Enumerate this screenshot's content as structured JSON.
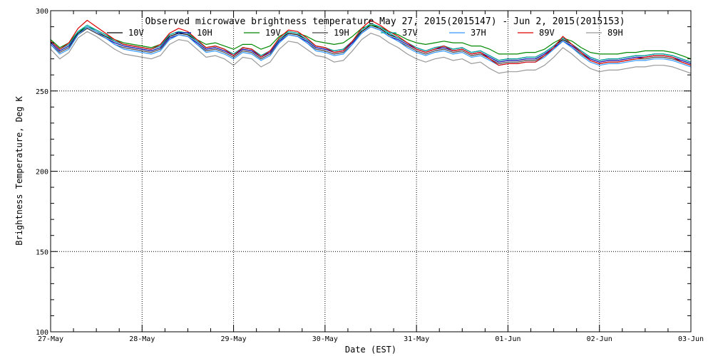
{
  "chart_data": {
    "type": "line",
    "title": "Observed microwave brightness temperature May 27, 2015(2015147) - Jun  2, 2015(2015153)",
    "xlabel": "Date (EST)",
    "ylabel": "Brightness Temperature, Deg K",
    "ylim": [
      100,
      300
    ],
    "xlim": [
      0,
      7
    ],
    "x_unit": "days since 27-May 00:00",
    "xticks": [
      {
        "value": 0,
        "label": "27-May"
      },
      {
        "value": 1,
        "label": "28-May"
      },
      {
        "value": 2,
        "label": "29-May"
      },
      {
        "value": 3,
        "label": "30-May"
      },
      {
        "value": 4,
        "label": "31-May"
      },
      {
        "value": 5,
        "label": "01-Jun"
      },
      {
        "value": 6,
        "label": "02-Jun"
      },
      {
        "value": 7,
        "label": "03-Jun"
      }
    ],
    "yticks": [
      {
        "value": 100,
        "label": "100"
      },
      {
        "value": 150,
        "label": "150"
      },
      {
        "value": 200,
        "label": "200"
      },
      {
        "value": 250,
        "label": "250"
      },
      {
        "value": 300,
        "label": "300"
      }
    ],
    "grid": true,
    "legend_position": "top-inside",
    "x": [
      0.0,
      0.1,
      0.2,
      0.3,
      0.4,
      0.5,
      0.6,
      0.7,
      0.8,
      0.9,
      1.0,
      1.1,
      1.2,
      1.3,
      1.4,
      1.5,
      1.6,
      1.7,
      1.8,
      1.9,
      2.0,
      2.1,
      2.2,
      2.3,
      2.4,
      2.5,
      2.6,
      2.7,
      2.8,
      2.9,
      3.0,
      3.1,
      3.2,
      3.3,
      3.4,
      3.5,
      3.6,
      3.7,
      3.8,
      3.9,
      4.0,
      4.1,
      4.2,
      4.3,
      4.4,
      4.5,
      4.6,
      4.7,
      4.8,
      4.9,
      5.0,
      5.1,
      5.2,
      5.3,
      5.4,
      5.5,
      5.6,
      5.7,
      5.8,
      5.9,
      6.0,
      6.1,
      6.2,
      6.3,
      6.4,
      6.5,
      6.6,
      6.7,
      6.8,
      6.9,
      7.0
    ],
    "series": [
      {
        "name": "10V",
        "color": "#000000",
        "values": [
          281,
          276,
          279,
          286,
          290,
          287,
          284,
          281,
          279,
          278,
          277,
          276,
          278,
          284,
          286,
          285,
          281,
          277,
          278,
          276,
          273,
          277,
          276,
          272,
          275,
          282,
          286,
          285,
          282,
          278,
          277,
          275,
          276,
          281,
          287,
          291,
          289,
          285,
          283,
          280,
          277,
          275,
          277,
          278,
          276,
          277,
          274,
          275,
          272,
          269,
          270,
          270,
          271,
          271,
          274,
          278,
          282,
          279,
          275,
          271,
          269,
          270,
          270,
          271,
          272,
          272,
          273,
          273,
          272,
          270,
          268
        ]
      },
      {
        "name": "10H",
        "color": "#0000aa",
        "values": [
          280,
          275,
          278,
          285,
          289,
          286,
          283,
          280,
          278,
          277,
          276,
          275,
          277,
          283,
          285,
          284,
          280,
          276,
          277,
          275,
          272,
          276,
          275,
          271,
          274,
          281,
          285,
          284,
          281,
          277,
          276,
          274,
          275,
          280,
          286,
          290,
          288,
          284,
          282,
          279,
          276,
          274,
          276,
          277,
          275,
          276,
          273,
          274,
          271,
          268,
          269,
          269,
          270,
          270,
          273,
          277,
          281,
          278,
          274,
          270,
          268,
          269,
          269,
          270,
          271,
          271,
          272,
          272,
          271,
          269,
          267
        ]
      },
      {
        "name": "19V",
        "color": "#008800",
        "values": [
          282,
          277,
          280,
          287,
          290,
          288,
          285,
          282,
          280,
          279,
          278,
          277,
          279,
          285,
          287,
          286,
          282,
          279,
          280,
          278,
          276,
          279,
          279,
          276,
          278,
          284,
          287,
          286,
          284,
          281,
          280,
          279,
          280,
          284,
          289,
          291,
          290,
          287,
          285,
          282,
          280,
          279,
          280,
          281,
          280,
          280,
          278,
          278,
          276,
          273,
          273,
          273,
          274,
          274,
          276,
          280,
          283,
          281,
          277,
          274,
          273,
          273,
          273,
          274,
          274,
          275,
          275,
          275,
          274,
          272,
          270
        ]
      },
      {
        "name": "19H",
        "color": "#444444",
        "values": [
          279,
          274,
          277,
          285,
          289,
          286,
          283,
          279,
          277,
          276,
          275,
          274,
          276,
          282,
          285,
          284,
          279,
          275,
          276,
          274,
          271,
          275,
          274,
          270,
          273,
          280,
          285,
          284,
          280,
          276,
          275,
          273,
          274,
          279,
          286,
          290,
          288,
          284,
          281,
          278,
          275,
          273,
          275,
          276,
          274,
          275,
          272,
          273,
          270,
          267,
          268,
          268,
          269,
          269,
          272,
          276,
          281,
          277,
          273,
          269,
          267,
          268,
          268,
          269,
          270,
          270,
          271,
          271,
          270,
          268,
          266
        ]
      },
      {
        "name": "37V",
        "color": "#00aaaa",
        "values": [
          281,
          276,
          279,
          287,
          291,
          288,
          285,
          281,
          279,
          278,
          277,
          276,
          278,
          285,
          287,
          286,
          281,
          277,
          278,
          276,
          273,
          277,
          276,
          272,
          275,
          282,
          287,
          286,
          282,
          278,
          277,
          275,
          276,
          281,
          288,
          292,
          290,
          286,
          283,
          280,
          277,
          275,
          277,
          278,
          276,
          277,
          274,
          275,
          272,
          269,
          270,
          270,
          271,
          271,
          274,
          278,
          283,
          279,
          275,
          271,
          269,
          270,
          270,
          271,
          272,
          272,
          273,
          273,
          272,
          270,
          268
        ]
      },
      {
        "name": "37H",
        "color": "#3399ff",
        "values": [
          279,
          273,
          276,
          285,
          290,
          287,
          283,
          279,
          276,
          275,
          274,
          273,
          275,
          282,
          285,
          284,
          279,
          274,
          275,
          273,
          270,
          274,
          273,
          269,
          272,
          280,
          285,
          284,
          280,
          275,
          274,
          272,
          273,
          279,
          286,
          290,
          288,
          284,
          281,
          277,
          274,
          272,
          274,
          275,
          273,
          274,
          271,
          272,
          269,
          266,
          267,
          267,
          268,
          268,
          271,
          276,
          281,
          277,
          272,
          268,
          266,
          267,
          267,
          268,
          269,
          269,
          270,
          270,
          269,
          267,
          265
        ]
      },
      {
        "name": "89V",
        "color": "#dd0000",
        "values": [
          281,
          276,
          280,
          289,
          294,
          290,
          286,
          282,
          279,
          278,
          277,
          276,
          279,
          286,
          289,
          287,
          282,
          277,
          278,
          276,
          272,
          277,
          276,
          271,
          275,
          283,
          288,
          287,
          283,
          278,
          277,
          274,
          275,
          281,
          289,
          294,
          291,
          287,
          284,
          280,
          276,
          274,
          276,
          278,
          275,
          276,
          273,
          274,
          270,
          266,
          267,
          267,
          268,
          268,
          272,
          277,
          284,
          279,
          274,
          269,
          267,
          268,
          268,
          269,
          270,
          271,
          272,
          272,
          271,
          268,
          266
        ]
      },
      {
        "name": "89H",
        "color": "#999999",
        "values": [
          276,
          270,
          274,
          283,
          287,
          284,
          280,
          276,
          273,
          272,
          271,
          270,
          272,
          279,
          282,
          281,
          276,
          271,
          272,
          270,
          266,
          271,
          270,
          265,
          268,
          276,
          281,
          280,
          276,
          272,
          271,
          268,
          269,
          275,
          282,
          286,
          284,
          280,
          277,
          273,
          270,
          268,
          270,
          271,
          269,
          270,
          267,
          268,
          264,
          261,
          262,
          262,
          263,
          263,
          266,
          271,
          277,
          273,
          268,
          264,
          262,
          263,
          263,
          264,
          265,
          265,
          266,
          266,
          265,
          263,
          261
        ]
      }
    ]
  }
}
